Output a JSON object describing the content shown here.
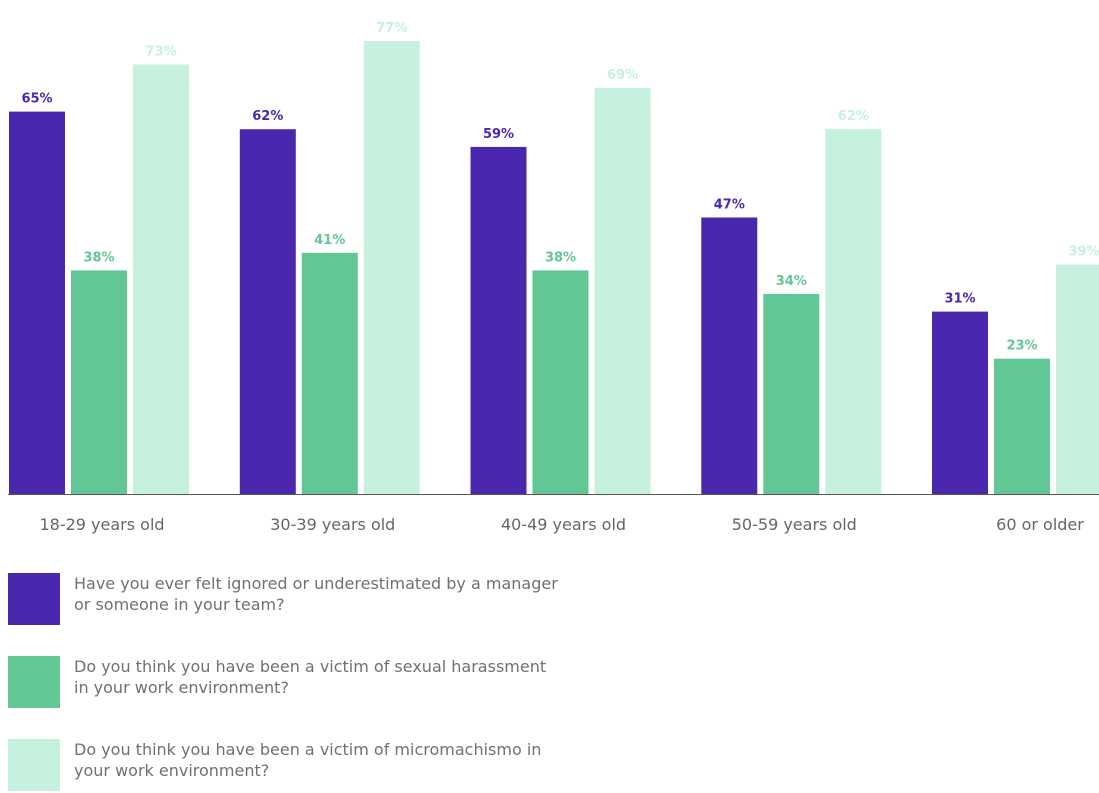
{
  "chart_data": {
    "type": "bar",
    "categories": [
      "18-29 years old",
      "30-39 years old",
      "40-49 years old",
      "50-59 years old",
      "60 or older"
    ],
    "series": [
      {
        "name": "Have you ever felt ignored or underestimated by a manager or someone in your team?",
        "values": [
          65,
          62,
          59,
          47,
          31
        ],
        "labels": [
          "65%",
          "62%",
          "59%",
          "47%",
          "31%"
        ]
      },
      {
        "name": "Do you think you have been a victim of sexual harassment in your work environment?",
        "values": [
          38,
          41,
          38,
          34,
          23
        ],
        "labels": [
          "38%",
          "41%",
          "38%",
          "34%",
          "23%"
        ]
      },
      {
        "name": "Do you think you have been a victim of micromachismo in your work environment?",
        "values": [
          73,
          77,
          69,
          62,
          39
        ],
        "labels": [
          "73%",
          "77%",
          "69%",
          "62%",
          "39%"
        ]
      }
    ],
    "colors": [
      "#4b27ad",
      "#62c795",
      "#c6f1df"
    ],
    "label_colors": [
      "#4b27ad",
      "#62c795",
      "#c6f1df"
    ],
    "ylim": [
      0,
      100
    ],
    "legend_position": "bottom-left",
    "grid": false
  }
}
